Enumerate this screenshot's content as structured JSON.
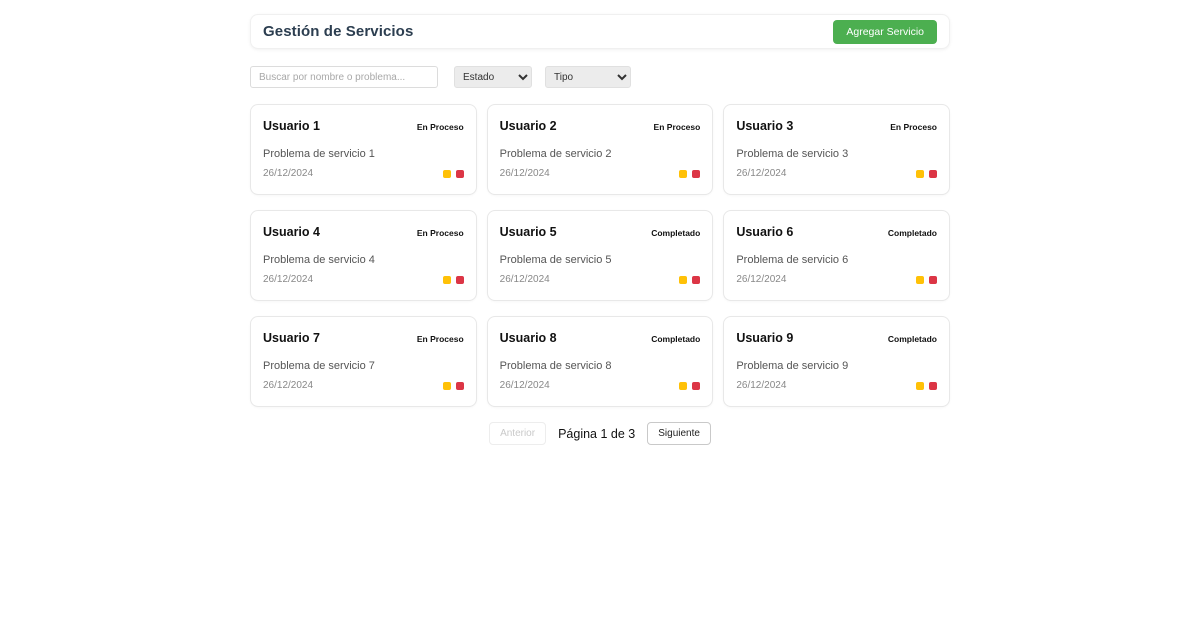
{
  "header": {
    "title": "Gestión de Servicios",
    "add_button_label": "Agregar Servicio"
  },
  "filters": {
    "search_placeholder": "Buscar por nombre o problema...",
    "estado_selected": "Estado",
    "tipo_selected": "Tipo"
  },
  "cards": [
    {
      "name": "Usuario 1",
      "status": "En Proceso",
      "problem": "Problema de servicio 1",
      "date": "26/12/2024"
    },
    {
      "name": "Usuario 2",
      "status": "En Proceso",
      "problem": "Problema de servicio 2",
      "date": "26/12/2024"
    },
    {
      "name": "Usuario 3",
      "status": "En Proceso",
      "problem": "Problema de servicio 3",
      "date": "26/12/2024"
    },
    {
      "name": "Usuario 4",
      "status": "En Proceso",
      "problem": "Problema de servicio 4",
      "date": "26/12/2024"
    },
    {
      "name": "Usuario 5",
      "status": "Completado",
      "problem": "Problema de servicio 5",
      "date": "26/12/2024"
    },
    {
      "name": "Usuario 6",
      "status": "Completado",
      "problem": "Problema de servicio 6",
      "date": "26/12/2024"
    },
    {
      "name": "Usuario 7",
      "status": "En Proceso",
      "problem": "Problema de servicio 7",
      "date": "26/12/2024"
    },
    {
      "name": "Usuario 8",
      "status": "Completado",
      "problem": "Problema de servicio 8",
      "date": "26/12/2024"
    },
    {
      "name": "Usuario 9",
      "status": "Completado",
      "problem": "Problema de servicio 9",
      "date": "26/12/2024"
    }
  ],
  "pagination": {
    "prev_label": "Anterior",
    "info": "Página 1 de 3",
    "next_label": "Siguiente"
  },
  "colors": {
    "title_navy": "#2c3e50",
    "accent_green": "#4caf50",
    "dot_yellow": "#ffc107",
    "dot_red": "#dc3545"
  }
}
